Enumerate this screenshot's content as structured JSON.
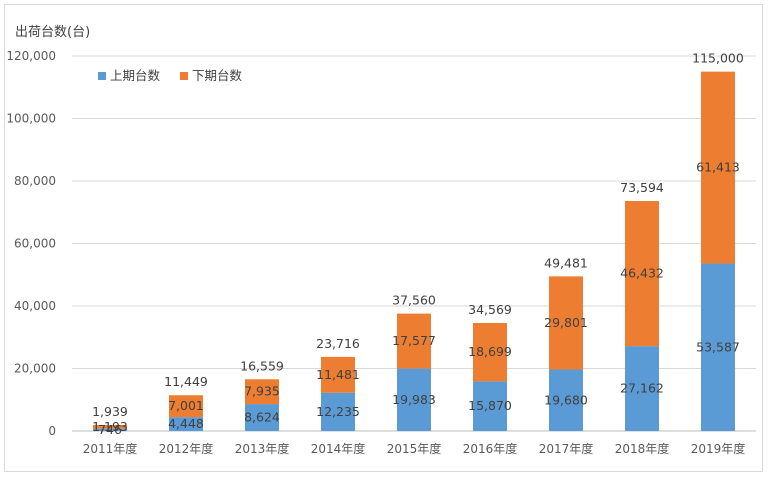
{
  "chart_data": {
    "type": "bar",
    "stacked": true,
    "ylabel": "出荷台数(台)",
    "categories": [
      "2011年度",
      "2012年度",
      "2013年度",
      "2014年度",
      "2015年度",
      "2016年度",
      "2017年度",
      "2018年度",
      "2019年度"
    ],
    "series": [
      {
        "name": "上期台数",
        "color": "#5b9bd5",
        "values": [
          746,
          4448,
          8624,
          12235,
          19983,
          15870,
          19680,
          27162,
          53587
        ]
      },
      {
        "name": "下期台数",
        "color": "#ed7d31",
        "values": [
          1193,
          7001,
          7935,
          11481,
          17577,
          18699,
          29801,
          46432,
          61413
        ]
      }
    ],
    "totals": [
      1939,
      11449,
      16559,
      23716,
      37560,
      34569,
      49481,
      73594,
      115000
    ],
    "yticks": [
      "0",
      "20,000",
      "40,000",
      "60,000",
      "80,000",
      "100,000",
      "120,000"
    ],
    "ylim": [
      0,
      120000
    ],
    "grid": true,
    "legend": "top-left"
  }
}
